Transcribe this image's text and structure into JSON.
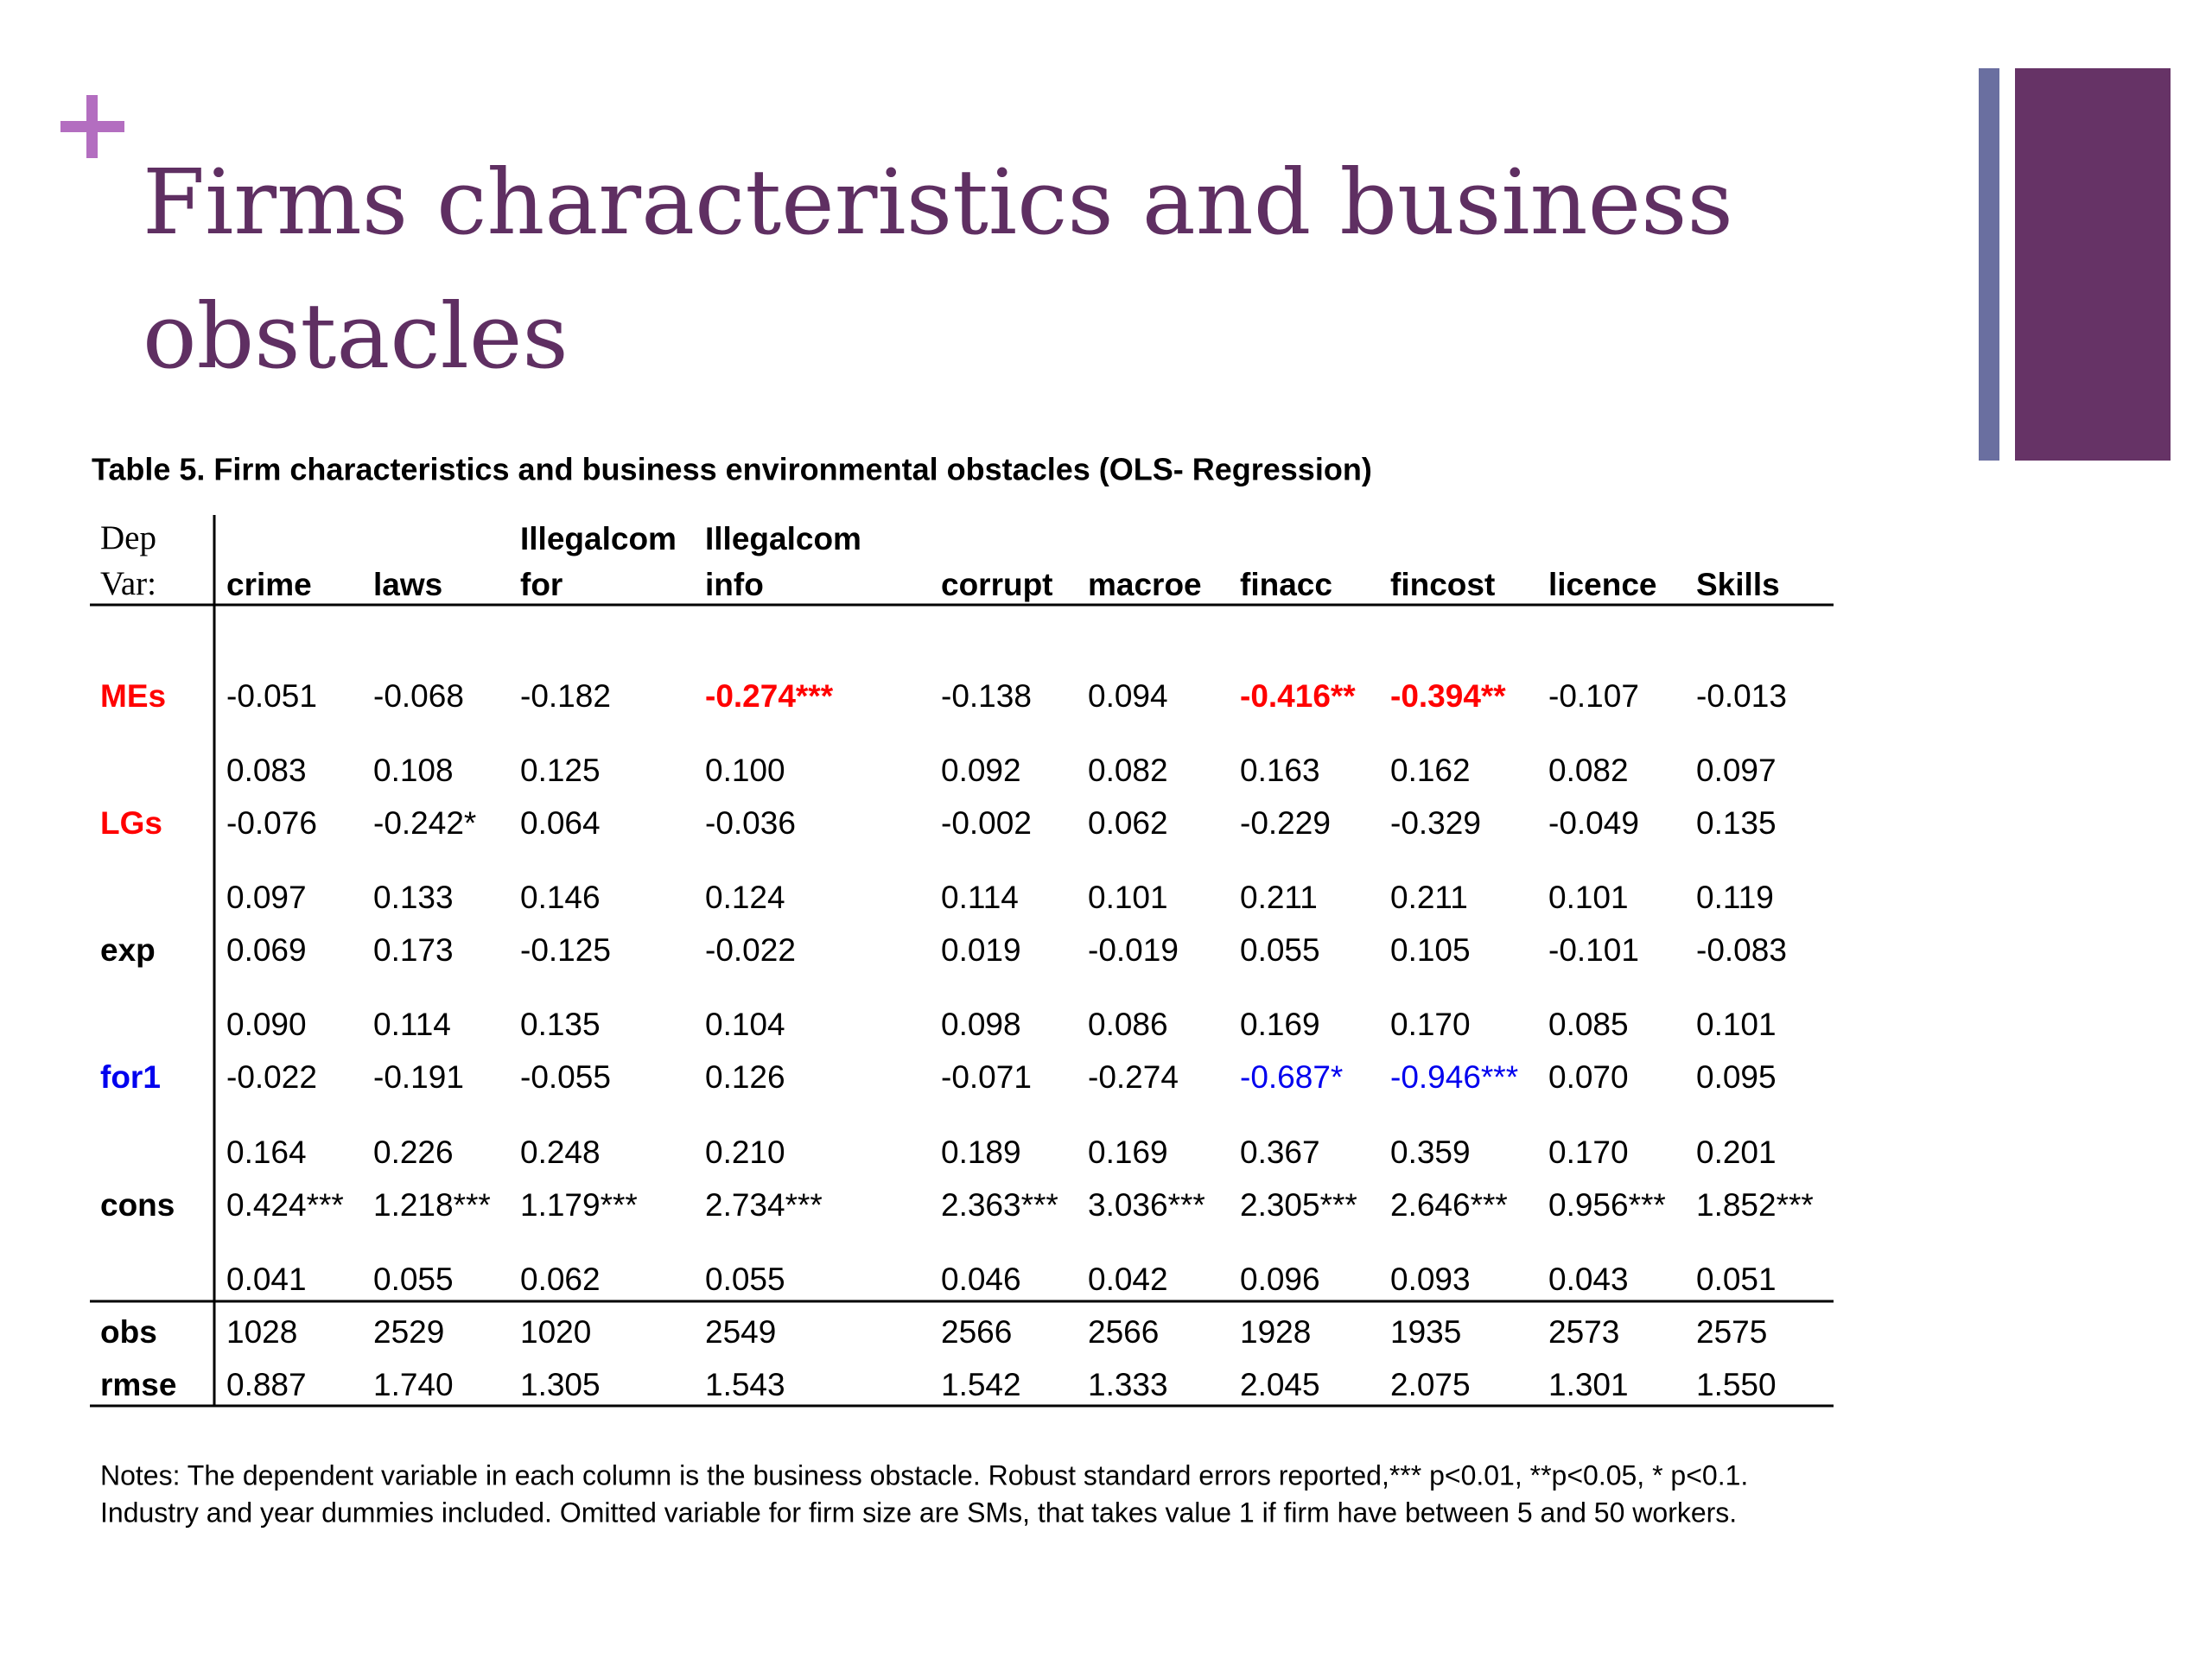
{
  "title": "Firms characteristics and business obstacles",
  "table": {
    "caption": "Table 5. Firm characteristics and business environmental obstacles (OLS- Regression)",
    "header": [
      [
        "Dep",
        "Var:"
      ],
      [
        "crime"
      ],
      [
        "laws"
      ],
      [
        "Illegalcom",
        "for"
      ],
      [
        "Illegalcom",
        "info"
      ],
      [
        "corrupt"
      ],
      [
        "macroe"
      ],
      [
        "finacc"
      ],
      [
        "fincost"
      ],
      [
        "licence"
      ],
      [
        "Skills"
      ]
    ],
    "variables": [
      {
        "name": "MEs",
        "coef": [
          "-0.051",
          "-0.068",
          "-0.182",
          "-0.274***",
          "-0.138",
          "0.094",
          "-0.416**",
          "-0.394**",
          "-0.107",
          "-0.013"
        ],
        "se": [
          "0.083",
          "0.108",
          "0.125",
          "0.100",
          "0.092",
          "0.082",
          "0.163",
          "0.162",
          "0.082",
          "0.097"
        ]
      },
      {
        "name": "LGs",
        "coef": [
          "-0.076",
          "-0.242*",
          "0.064",
          "-0.036",
          "-0.002",
          "0.062",
          "-0.229",
          "-0.329",
          "-0.049",
          "0.135"
        ],
        "se": [
          "0.097",
          "0.133",
          "0.146",
          "0.124",
          "0.114",
          "0.101",
          "0.211",
          "0.211",
          "0.101",
          "0.119"
        ]
      },
      {
        "name": "exp",
        "coef": [
          "0.069",
          "0.173",
          "-0.125",
          "-0.022",
          "0.019",
          "-0.019",
          "0.055",
          "0.105",
          "-0.101",
          "-0.083"
        ],
        "se": [
          "0.090",
          "0.114",
          "0.135",
          "0.104",
          "0.098",
          "0.086",
          "0.169",
          "0.170",
          "0.085",
          "0.101"
        ]
      },
      {
        "name": "for1",
        "coef": [
          "-0.022",
          "-0.191",
          "-0.055",
          "0.126",
          "-0.071",
          "-0.274",
          "-0.687*",
          "-0.946***",
          "0.070",
          "0.095"
        ],
        "se": [
          "0.164",
          "0.226",
          "0.248",
          "0.210",
          "0.189",
          "0.169",
          "0.367",
          "0.359",
          "0.170",
          "0.201"
        ]
      },
      {
        "name": "cons",
        "coef": [
          "0.424***",
          "1.218***",
          "1.179***",
          "2.734***",
          "2.363***",
          "3.036***",
          "2.305***",
          "2.646***",
          "0.956***",
          "1.852***"
        ],
        "se": [
          "0.041",
          "0.055",
          "0.062",
          "0.055",
          "0.046",
          "0.042",
          "0.096",
          "0.093",
          "0.043",
          "0.051"
        ]
      }
    ],
    "stats": [
      {
        "name": "obs",
        "values": [
          "1028",
          "2529",
          "1020",
          "2549",
          "2566",
          "2566",
          "1928",
          "1935",
          "2573",
          "2575"
        ]
      },
      {
        "name": "rmse",
        "values": [
          "0.887",
          "1.740",
          "1.305",
          "1.543",
          "1.542",
          "1.333",
          "2.045",
          "2.075",
          "1.301",
          "1.550"
        ]
      }
    ],
    "notes": [
      "Notes: The dependent variable in each column is the business obstacle. Robust standard errors reported,*** p<0.01, **p<0.05, * p<0.1.",
      "Industry and year dummies included.  Omitted variable for firm size are SMs, that takes value 1 if firm have between 5 and 50 workers."
    ]
  }
}
